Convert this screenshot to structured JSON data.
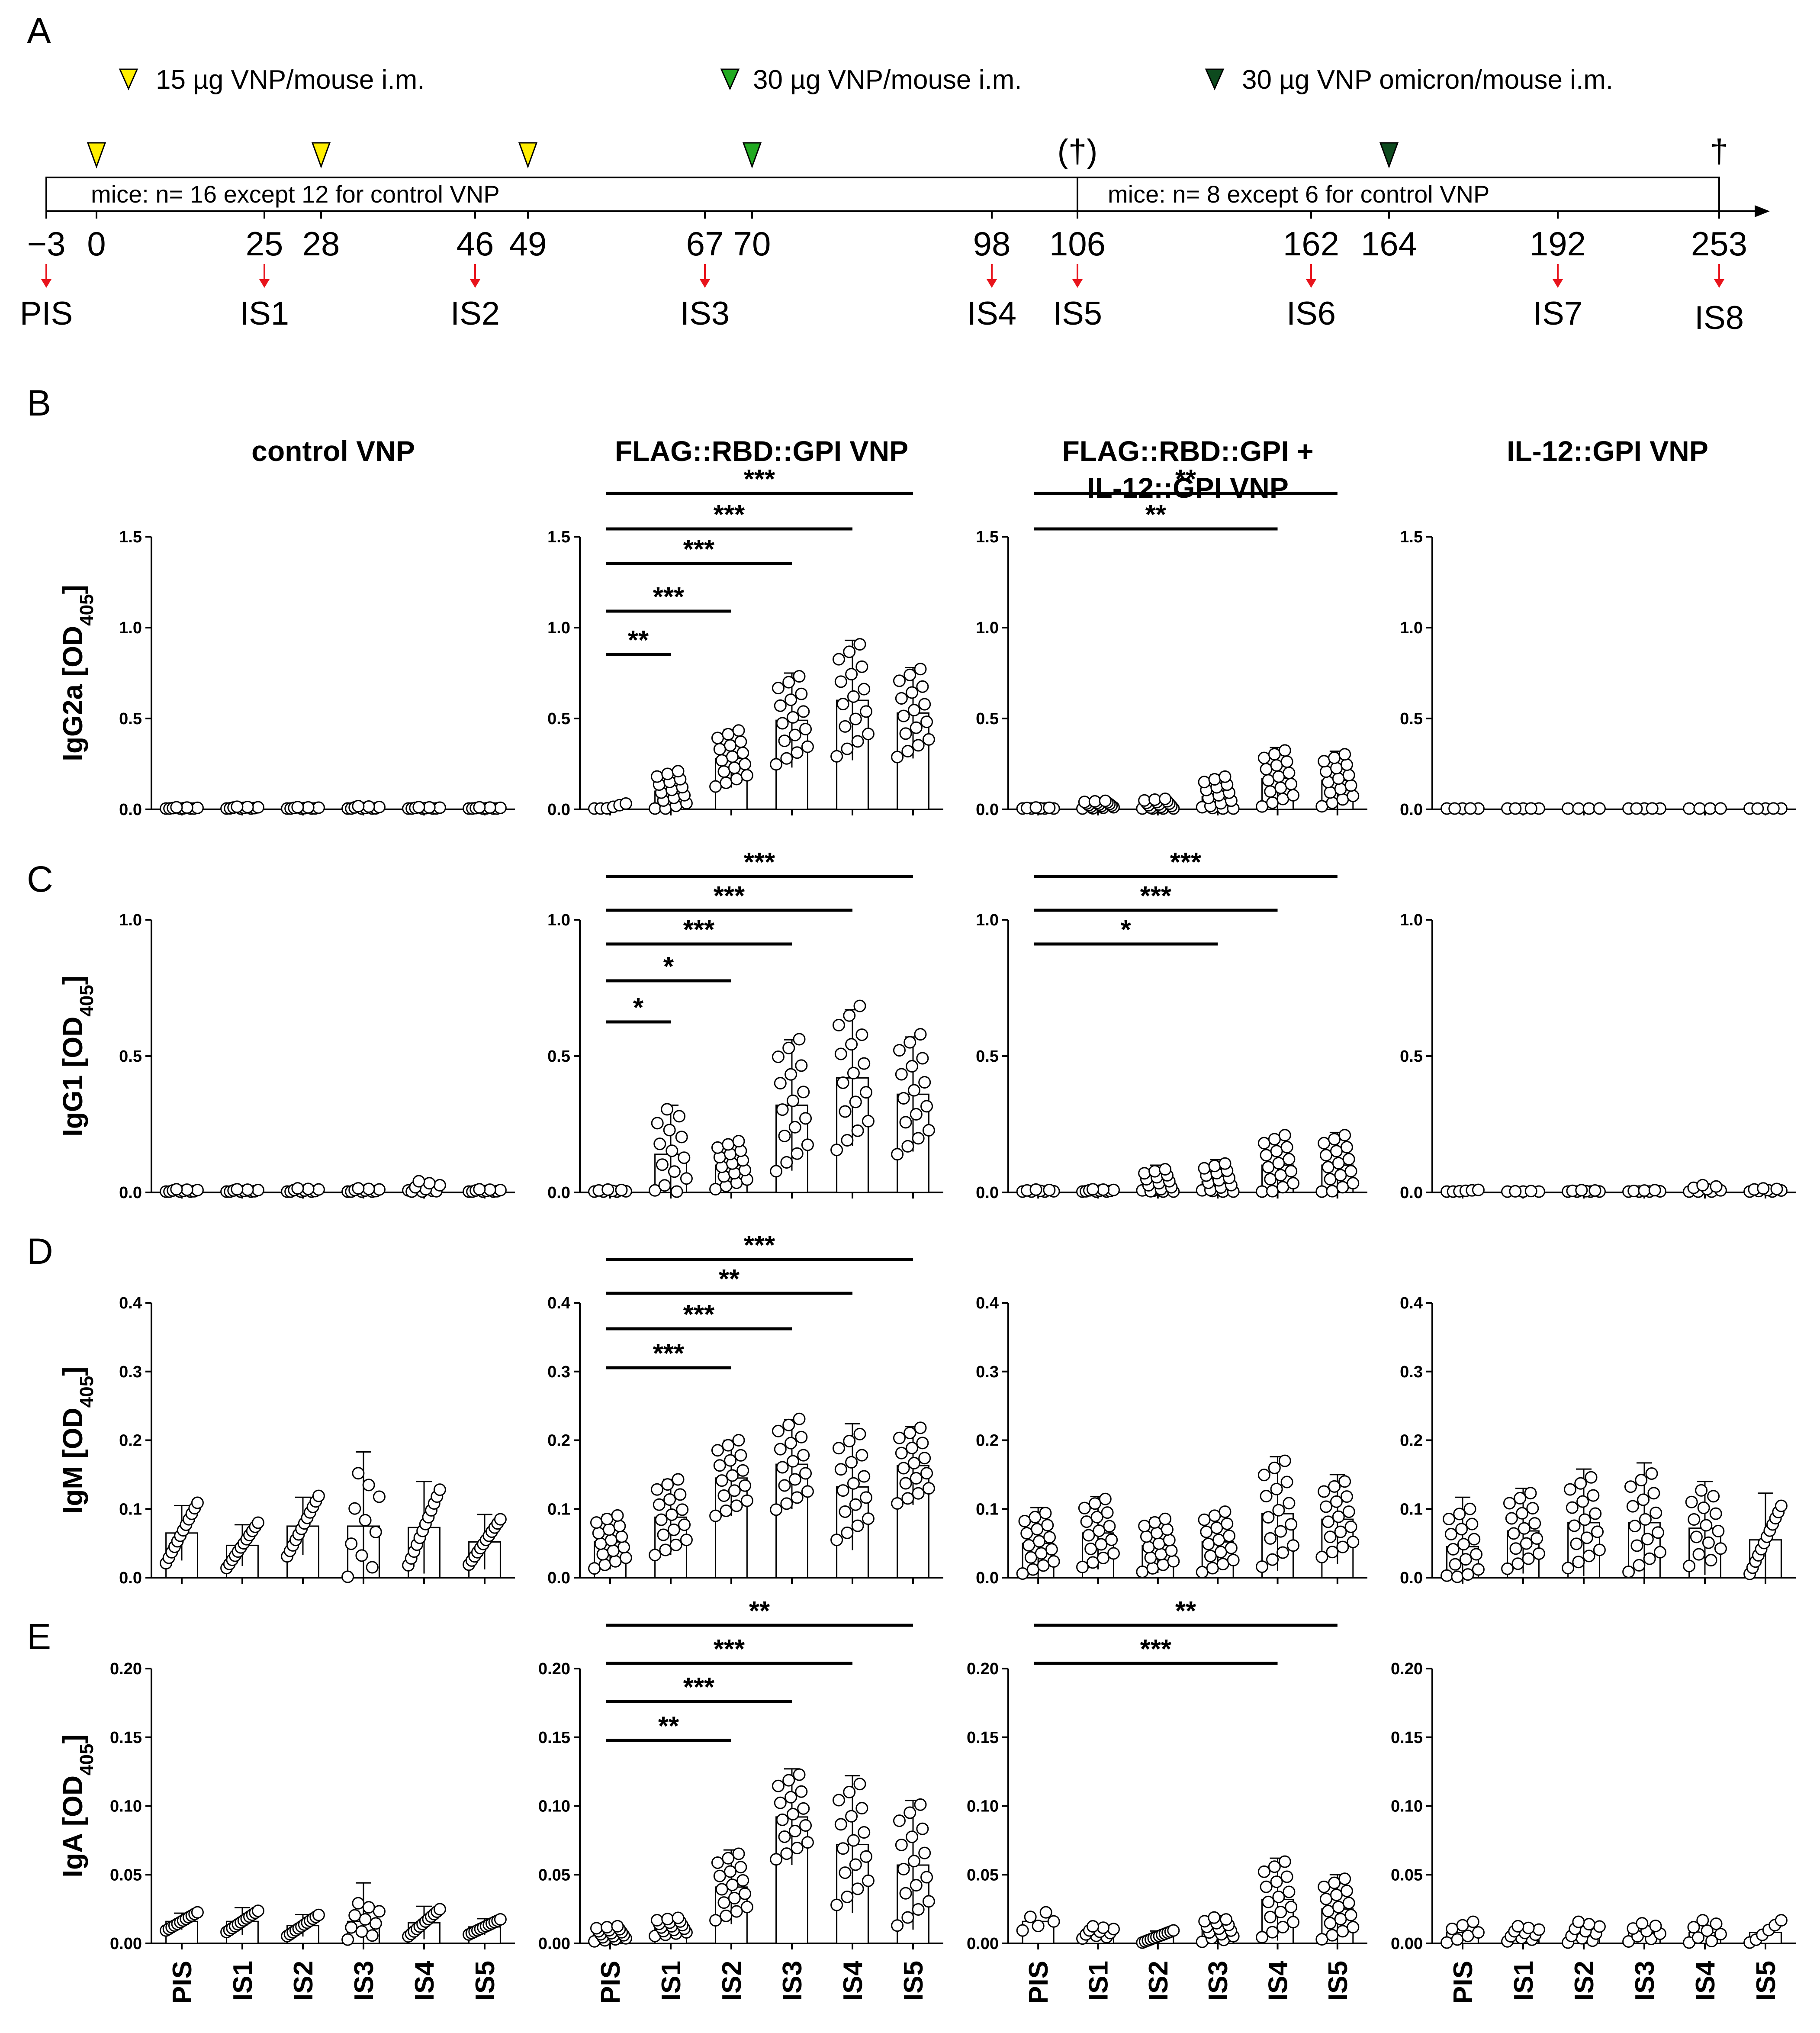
{
  "figure": {
    "panel_labels": [
      "A",
      "B",
      "C",
      "D",
      "E"
    ]
  },
  "timeline": {
    "legend": [
      {
        "label": "15 µg VNP/mouse i.m.",
        "color": "#ffee00"
      },
      {
        "label": "30 µg VNP/mouse i.m.",
        "color": "#22aa22"
      },
      {
        "label": "30 µg VNP omicron/mouse i.m.",
        "color": "#0d4a1e"
      }
    ],
    "box1_label": "mice: n= 16 except 12 for control VNP",
    "box2_label": "mice: n= 8 except 6 for control VNP",
    "sacrifice_partial": "(†)",
    "sacrifice_final": "†",
    "days": [
      "−3",
      "0",
      "25",
      "28",
      "46",
      "49",
      "67",
      "70",
      "98",
      "106",
      "162",
      "164",
      "192",
      "253"
    ],
    "injections": [
      {
        "day": 0,
        "dose": "15"
      },
      {
        "day": 28,
        "dose": "15"
      },
      {
        "day": 49,
        "dose": "15"
      },
      {
        "day": 70,
        "dose": "30"
      },
      {
        "day": 164,
        "dose": "omicron"
      }
    ],
    "sera": [
      {
        "label": "PIS",
        "day": -3
      },
      {
        "label": "IS1",
        "day": 25
      },
      {
        "label": "IS2",
        "day": 46
      },
      {
        "label": "IS3",
        "day": 67
      },
      {
        "label": "IS4",
        "day": 98
      },
      {
        "label": "IS5",
        "day": 106
      },
      {
        "label": "IS6",
        "day": 162
      },
      {
        "label": "IS7",
        "day": 192
      },
      {
        "label": "IS8",
        "day": 253
      }
    ],
    "colors": {
      "arrow": "#e8141c",
      "outline": "#000000"
    }
  },
  "groups": [
    "control VNP",
    "FLAG::RBD::GPI VNP",
    "FLAG::RBD::GPI +",
    "IL-12::GPI VNP"
  ],
  "group3_line2": "IL-12::GPI VNP",
  "chart_data": [
    {
      "type": "bar",
      "panel": "B",
      "ylabel": "IgG2a [OD",
      "ylabel_sub": "405",
      "ylabel_end": "]",
      "ylim": [
        0,
        1.5
      ],
      "yticks": [
        "0.0",
        "0.5",
        "1.0",
        "1.5"
      ],
      "ytick_values": [
        0,
        0.5,
        1.0,
        1.5
      ],
      "categories": [
        "PIS",
        "IS1",
        "IS2",
        "IS3",
        "IS4",
        "IS5"
      ],
      "series": [
        {
          "name": "control VNP",
          "values": [
            0.005,
            0.008,
            0.006,
            0.007,
            0.006,
            0.005
          ],
          "err": [
            0.005,
            0.005,
            0.005,
            0.005,
            0.005,
            0.005
          ],
          "n": [
            10,
            10,
            10,
            10,
            10,
            10
          ],
          "spread": [
            0.006,
            0.006,
            0.006,
            0.01,
            0.006,
            0.006
          ]
        },
        {
          "name": "FLAG::RBD::GPI VNP",
          "values": [
            0.01,
            0.1,
            0.28,
            0.49,
            0.6,
            0.53
          ],
          "err": [
            0.01,
            0.11,
            0.16,
            0.26,
            0.33,
            0.25
          ],
          "n": [
            6,
            16,
            16,
            16,
            16,
            16
          ],
          "spread": [
            0.02,
            0.1,
            0.14,
            0.22,
            0.28,
            0.22
          ]
        },
        {
          "name": "FLAG::RBD::GPI + IL-12::GPI VNP",
          "values": [
            0.005,
            0.025,
            0.025,
            0.07,
            0.17,
            0.16
          ],
          "err": [
            0.005,
            0.02,
            0.03,
            0.12,
            0.17,
            0.16
          ],
          "n": [
            8,
            16,
            16,
            16,
            16,
            16
          ],
          "spread": [
            0.005,
            0.02,
            0.03,
            0.1,
            0.14,
            0.13
          ]
        },
        {
          "name": "IL-12::GPI VNP",
          "values": [
            0.003,
            0.003,
            0.003,
            0.003,
            0.003,
            0.003
          ],
          "err": [
            0,
            0,
            0,
            0,
            0,
            0
          ],
          "n": [
            5,
            5,
            4,
            5,
            4,
            5
          ],
          "spread": [
            0.002,
            0.002,
            0.002,
            0.002,
            0.002,
            0.002
          ]
        }
      ],
      "significance": [
        {
          "group": 1,
          "from": 0,
          "to": 5,
          "label": "***"
        },
        {
          "group": 1,
          "from": 0,
          "to": 4,
          "label": "***"
        },
        {
          "group": 1,
          "from": 0,
          "to": 3,
          "label": "***"
        },
        {
          "group": 1,
          "from": 0,
          "to": 2,
          "label": "***"
        },
        {
          "group": 1,
          "from": 0,
          "to": 1,
          "label": "**"
        },
        {
          "group": 2,
          "from": 0,
          "to": 5,
          "label": "**"
        },
        {
          "group": 2,
          "from": 0,
          "to": 4,
          "label": "**"
        }
      ]
    },
    {
      "type": "bar",
      "panel": "C",
      "ylabel": "IgG1 [OD",
      "ylabel_sub": "405",
      "ylabel_end": "]",
      "ylim": [
        0,
        1.0
      ],
      "yticks": [
        "0.0",
        "0.5",
        "1.0"
      ],
      "ytick_values": [
        0,
        0.5,
        1.0
      ],
      "categories": [
        "PIS",
        "IS1",
        "IS2",
        "IS3",
        "IS4",
        "IS5"
      ],
      "series": [
        {
          "name": "control VNP",
          "values": [
            0.005,
            0.005,
            0.006,
            0.006,
            0.008,
            0.005
          ],
          "err": [
            0.004,
            0.004,
            0.005,
            0.005,
            0.01,
            0.004
          ],
          "n": [
            10,
            10,
            10,
            10,
            10,
            10
          ],
          "spread": [
            0.006,
            0.006,
            0.008,
            0.008,
            0.03,
            0.006
          ]
        },
        {
          "name": "FLAG::RBD::GPI VNP",
          "values": [
            0.005,
            0.14,
            0.1,
            0.32,
            0.42,
            0.36
          ],
          "err": [
            0.005,
            0.18,
            0.08,
            0.24,
            0.25,
            0.21
          ],
          "n": [
            8,
            14,
            16,
            16,
            16,
            16
          ],
          "spread": [
            0.005,
            0.15,
            0.08,
            0.22,
            0.24,
            0.2
          ]
        },
        {
          "name": "FLAG::RBD::GPI + IL-12::GPI VNP",
          "values": [
            0.005,
            0.006,
            0.03,
            0.04,
            0.1,
            0.1
          ],
          "err": [
            0.005,
            0.005,
            0.07,
            0.08,
            0.1,
            0.12
          ],
          "n": [
            8,
            10,
            16,
            16,
            16,
            16
          ],
          "spread": [
            0.005,
            0.005,
            0.05,
            0.06,
            0.1,
            0.1
          ]
        },
        {
          "name": "IL-12::GPI VNP",
          "values": [
            0.005,
            0.003,
            0.004,
            0.004,
            0.01,
            0.008
          ],
          "err": [
            0,
            0,
            0,
            0,
            0.01,
            0.005
          ],
          "n": [
            6,
            5,
            8,
            7,
            8,
            8
          ],
          "spread": [
            0.004,
            0.002,
            0.004,
            0.004,
            0.015,
            0.006
          ]
        }
      ],
      "significance": [
        {
          "group": 1,
          "from": 0,
          "to": 5,
          "label": "***"
        },
        {
          "group": 1,
          "from": 0,
          "to": 4,
          "label": "***"
        },
        {
          "group": 1,
          "from": 0,
          "to": 3,
          "label": "***"
        },
        {
          "group": 1,
          "from": 0,
          "to": 2,
          "label": "*"
        },
        {
          "group": 1,
          "from": 0,
          "to": 1,
          "label": "*"
        },
        {
          "group": 2,
          "from": 0,
          "to": 5,
          "label": "***"
        },
        {
          "group": 2,
          "from": 0,
          "to": 4,
          "label": "***"
        },
        {
          "group": 2,
          "from": 0,
          "to": 3,
          "label": "*"
        }
      ]
    },
    {
      "type": "bar",
      "panel": "D",
      "ylabel": "IgM [OD",
      "ylabel_sub": "405",
      "ylabel_end": "]",
      "ylim": [
        0,
        0.4
      ],
      "yticks": [
        "0.0",
        "0.1",
        "0.2",
        "0.3",
        "0.4"
      ],
      "ytick_values": [
        0,
        0.1,
        0.2,
        0.3,
        0.4
      ],
      "categories": [
        "PIS",
        "IS1",
        "IS2",
        "IS3",
        "IS4",
        "IS5"
      ],
      "series": [
        {
          "name": "control VNP",
          "values": [
            0.065,
            0.047,
            0.075,
            0.075,
            0.073,
            0.052
          ],
          "err": [
            0.04,
            0.03,
            0.042,
            0.108,
            0.067,
            0.04
          ],
          "n": [
            12,
            12,
            12,
            10,
            12,
            12
          ],
          "spread": [
            0.04,
            0.03,
            0.04,
            0.07,
            0.05,
            0.03
          ]
        },
        {
          "name": "FLAG::RBD::GPI VNP",
          "values": [
            0.052,
            0.088,
            0.145,
            0.165,
            0.132,
            0.163
          ],
          "err": [
            0.04,
            0.055,
            0.055,
            0.065,
            0.092,
            0.057
          ],
          "n": [
            16,
            16,
            16,
            16,
            16,
            16
          ],
          "spread": [
            0.035,
            0.05,
            0.05,
            0.06,
            0.07,
            0.05
          ]
        },
        {
          "name": "FLAG::RBD::GPI + IL-12::GPI VNP",
          "values": [
            0.05,
            0.065,
            0.047,
            0.052,
            0.093,
            0.085
          ],
          "err": [
            0.052,
            0.053,
            0.04,
            0.043,
            0.083,
            0.065
          ],
          "n": [
            16,
            16,
            16,
            16,
            16,
            16
          ],
          "spread": [
            0.04,
            0.045,
            0.035,
            0.04,
            0.07,
            0.05
          ]
        },
        {
          "name": "IL-12::GPI VNP",
          "values": [
            0.045,
            0.068,
            0.08,
            0.08,
            0.072,
            0.055
          ],
          "err": [
            0.072,
            0.062,
            0.078,
            0.087,
            0.068,
            0.068
          ],
          "n": [
            16,
            16,
            16,
            16,
            14,
            12
          ],
          "spread": [
            0.05,
            0.05,
            0.06,
            0.065,
            0.05,
            0.045
          ]
        }
      ],
      "significance": [
        {
          "group": 1,
          "from": 0,
          "to": 5,
          "label": "***"
        },
        {
          "group": 1,
          "from": 0,
          "to": 4,
          "label": "**"
        },
        {
          "group": 1,
          "from": 0,
          "to": 3,
          "label": "***"
        },
        {
          "group": 1,
          "from": 0,
          "to": 2,
          "label": "***"
        }
      ]
    },
    {
      "type": "bar",
      "panel": "E",
      "ylabel": "IgA [OD",
      "ylabel_sub": "405",
      "ylabel_end": "]",
      "ylim": [
        0,
        0.2
      ],
      "yticks": [
        "0.00",
        "0.05",
        "0.10",
        "0.15",
        "0.20"
      ],
      "ytick_values": [
        0,
        0.05,
        0.1,
        0.15,
        0.2
      ],
      "categories": [
        "PIS",
        "IS1",
        "IS2",
        "IS3",
        "IS4",
        "IS5"
      ],
      "series": [
        {
          "name": "control VNP",
          "values": [
            0.016,
            0.016,
            0.013,
            0.016,
            0.015,
            0.012
          ],
          "err": [
            0.006,
            0.01,
            0.008,
            0.028,
            0.012,
            0.006
          ],
          "n": [
            12,
            12,
            12,
            10,
            12,
            12
          ],
          "spread": [
            0.006,
            0.007,
            0.007,
            0.012,
            0.009,
            0.005
          ]
        },
        {
          "name": "FLAG::RBD::GPI VNP",
          "values": [
            0.007,
            0.012,
            0.041,
            0.092,
            0.072,
            0.057
          ],
          "err": [
            0.006,
            0.006,
            0.027,
            0.035,
            0.05,
            0.047
          ],
          "n": [
            16,
            16,
            16,
            16,
            16,
            16
          ],
          "spread": [
            0.005,
            0.006,
            0.022,
            0.028,
            0.04,
            0.04
          ]
        },
        {
          "name": "FLAG::RBD::GPI + IL-12::GPI VNP",
          "values": [
            0.016,
            0.008,
            0.005,
            0.01,
            0.032,
            0.025
          ],
          "err": [
            0,
            0.004,
            0.004,
            0.01,
            0.03,
            0.025
          ],
          "n": [
            5,
            10,
            12,
            14,
            16,
            16
          ],
          "spread": [
            0.006,
            0.004,
            0.004,
            0.008,
            0.025,
            0.02
          ]
        },
        {
          "name": "IL-12::GPI VNP",
          "values": [
            0.008,
            0.007,
            0.008,
            0.008,
            0.008,
            0.008
          ],
          "err": [
            0,
            0,
            0,
            0,
            0,
            0
          ],
          "n": [
            7,
            10,
            10,
            8,
            8,
            6
          ],
          "spread": [
            0.007,
            0.005,
            0.007,
            0.006,
            0.008,
            0.008
          ]
        }
      ],
      "significance": [
        {
          "group": 1,
          "from": 0,
          "to": 5,
          "label": "**"
        },
        {
          "group": 1,
          "from": 0,
          "to": 4,
          "label": "***"
        },
        {
          "group": 1,
          "from": 0,
          "to": 3,
          "label": "***"
        },
        {
          "group": 1,
          "from": 0,
          "to": 2,
          "label": "**"
        },
        {
          "group": 2,
          "from": 0,
          "to": 5,
          "label": "**"
        },
        {
          "group": 2,
          "from": 0,
          "to": 4,
          "label": "***"
        }
      ]
    }
  ]
}
